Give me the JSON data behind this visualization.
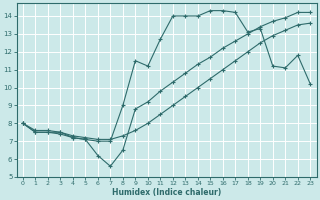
{
  "xlabel": "Humidex (Indice chaleur)",
  "bg_color": "#cce9e9",
  "grid_color": "#ffffff",
  "line_color": "#2e6b6b",
  "xlim": [
    -0.5,
    23.5
  ],
  "ylim": [
    5,
    14.7
  ],
  "yticks": [
    5,
    6,
    7,
    8,
    9,
    10,
    11,
    12,
    13,
    14
  ],
  "xticks": [
    0,
    1,
    2,
    3,
    4,
    5,
    6,
    7,
    8,
    9,
    10,
    11,
    12,
    13,
    14,
    15,
    16,
    17,
    18,
    19,
    20,
    21,
    22,
    23
  ],
  "curve1_x": [
    0,
    1,
    2,
    3,
    4,
    5,
    6,
    7,
    8,
    9,
    10,
    11,
    12,
    13,
    14,
    15,
    16,
    17,
    18,
    19,
    20,
    21,
    22,
    23
  ],
  "curve1_y": [
    8.0,
    7.5,
    7.5,
    7.5,
    7.2,
    7.1,
    7.0,
    7.0,
    9.0,
    11.5,
    11.2,
    12.7,
    14.0,
    14.0,
    14.0,
    14.3,
    14.3,
    14.2,
    13.1,
    13.3,
    11.2,
    11.1,
    11.8,
    10.2
  ],
  "curve2_x": [
    0,
    1,
    2,
    3,
    4,
    5,
    6,
    7,
    8,
    9,
    10,
    11,
    12,
    13,
    14,
    15,
    16,
    17,
    18,
    19,
    20,
    21,
    22,
    23
  ],
  "curve2_y": [
    8.0,
    7.6,
    7.6,
    7.5,
    7.3,
    7.2,
    7.1,
    7.1,
    7.3,
    7.6,
    8.0,
    8.5,
    9.0,
    9.5,
    10.0,
    10.5,
    11.0,
    11.5,
    12.0,
    12.5,
    12.9,
    13.2,
    13.5,
    13.6
  ],
  "curve3_x": [
    0,
    1,
    2,
    3,
    4,
    5,
    6,
    7,
    8,
    9,
    10,
    11,
    12,
    13,
    14,
    15,
    16,
    17,
    18,
    19,
    20,
    21,
    22,
    23
  ],
  "curve3_y": [
    8.0,
    7.5,
    7.5,
    7.4,
    7.2,
    7.1,
    6.2,
    5.6,
    6.5,
    8.8,
    9.2,
    9.8,
    10.3,
    10.8,
    11.3,
    11.7,
    12.2,
    12.6,
    13.0,
    13.4,
    13.7,
    13.9,
    14.2,
    14.2
  ]
}
